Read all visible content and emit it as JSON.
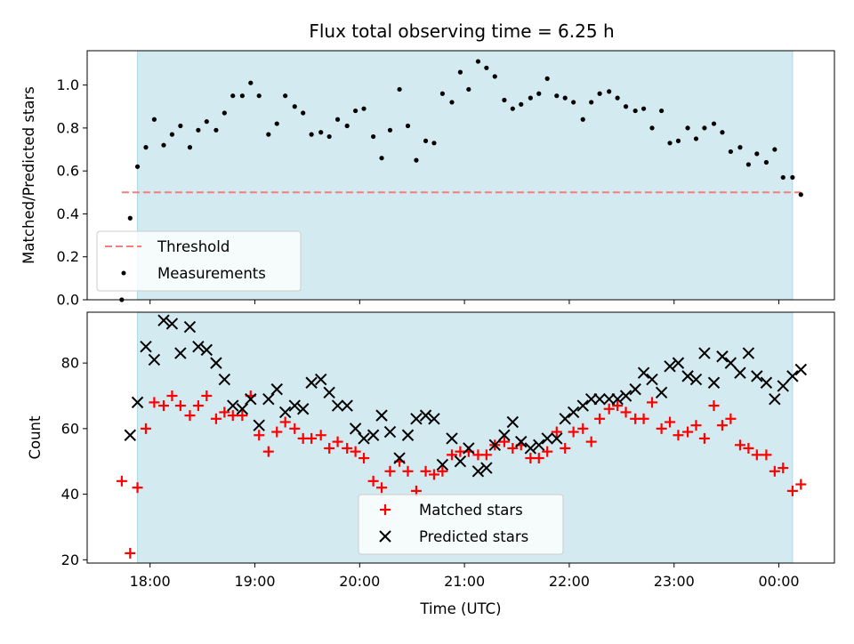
{
  "chart_data": [
    {
      "type": "scatter",
      "title": "Flux total observing time = 6.25 h",
      "xlabel": "",
      "ylabel": "Matched/Predicted stars",
      "xlim_hours": [
        17.4,
        24.53
      ],
      "ylim": [
        0.0,
        1.16
      ],
      "yticks": [
        0.0,
        0.2,
        0.4,
        0.6,
        0.8,
        1.0
      ],
      "ytick_labels": [
        "0.0",
        "0.2",
        "0.4",
        "0.6",
        "0.8",
        "1.0"
      ],
      "observing_window_hours": [
        17.88,
        24.13
      ],
      "observing_window_color": "#d3eaf0",
      "threshold": {
        "label": "Threshold",
        "value": 0.5,
        "x_range_hours": [
          17.73,
          24.21
        ],
        "color": "#f07f7f"
      },
      "legend_location": "lower left",
      "series": [
        {
          "name": "Measurements",
          "color": "#000000",
          "x": [
            17.73,
            17.81,
            17.88,
            17.96,
            18.04,
            18.13,
            18.21,
            18.29,
            18.38,
            18.46,
            18.54,
            18.63,
            18.71,
            18.79,
            18.88,
            18.96,
            19.04,
            19.13,
            19.21,
            19.29,
            19.38,
            19.46,
            19.54,
            19.63,
            19.71,
            19.79,
            19.88,
            19.96,
            20.04,
            20.13,
            20.21,
            20.29,
            20.38,
            20.46,
            20.54,
            20.63,
            20.71,
            20.79,
            20.88,
            20.96,
            21.04,
            21.13,
            21.21,
            21.29,
            21.38,
            21.46,
            21.54,
            21.63,
            21.71,
            21.79,
            21.88,
            21.96,
            22.04,
            22.13,
            22.21,
            22.29,
            22.38,
            22.46,
            22.54,
            22.63,
            22.71,
            22.79,
            22.88,
            22.96,
            23.04,
            23.13,
            23.21,
            23.29,
            23.38,
            23.46,
            23.54,
            23.63,
            23.71,
            23.79,
            23.88,
            23.96,
            24.04,
            24.13,
            24.21
          ],
          "y": [
            0.0,
            0.38,
            0.62,
            0.71,
            0.84,
            0.72,
            0.77,
            0.81,
            0.71,
            0.79,
            0.83,
            0.79,
            0.87,
            0.95,
            0.95,
            1.01,
            0.95,
            0.77,
            0.82,
            0.95,
            0.9,
            0.87,
            0.77,
            0.78,
            0.76,
            0.84,
            0.81,
            0.88,
            0.89,
            0.76,
            0.66,
            0.79,
            0.98,
            0.81,
            0.65,
            0.74,
            0.73,
            0.96,
            0.92,
            1.06,
            0.98,
            1.11,
            1.08,
            1.04,
            0.93,
            0.89,
            0.91,
            0.94,
            0.96,
            1.03,
            0.95,
            0.94,
            0.92,
            0.84,
            0.92,
            0.96,
            0.97,
            0.94,
            0.9,
            0.88,
            0.89,
            0.8,
            0.88,
            0.73,
            0.74,
            0.8,
            0.75,
            0.8,
            0.82,
            0.78,
            0.69,
            0.71,
            0.63,
            0.68,
            0.64,
            0.7,
            0.57,
            0.57,
            0.49
          ]
        }
      ]
    },
    {
      "type": "scatter",
      "title": "",
      "xlabel": "Time (UTC)",
      "ylabel": "Count",
      "xlim_hours": [
        17.4,
        24.53
      ],
      "ylim": [
        19.0,
        95.5
      ],
      "yticks": [
        20,
        40,
        60,
        80
      ],
      "ytick_labels": [
        "20",
        "40",
        "60",
        "80"
      ],
      "xticks_hours": [
        18,
        19,
        20,
        21,
        22,
        23,
        24
      ],
      "xtick_labels": [
        "18:00",
        "19:00",
        "20:00",
        "21:00",
        "22:00",
        "23:00",
        "00:00"
      ],
      "observing_window_hours": [
        17.88,
        24.13
      ],
      "observing_window_color": "#d3eaf0",
      "legend_location": "lower center",
      "series": [
        {
          "name": "Matched stars",
          "marker": "+",
          "color": "#ff0000",
          "x": [
            17.73,
            17.81,
            17.88,
            17.96,
            18.04,
            18.13,
            18.21,
            18.29,
            18.38,
            18.46,
            18.54,
            18.63,
            18.71,
            18.79,
            18.88,
            18.96,
            19.04,
            19.13,
            19.21,
            19.29,
            19.38,
            19.46,
            19.54,
            19.63,
            19.71,
            19.79,
            19.88,
            19.96,
            20.04,
            20.13,
            20.21,
            20.29,
            20.38,
            20.46,
            20.54,
            20.63,
            20.71,
            20.79,
            20.88,
            20.96,
            21.04,
            21.13,
            21.21,
            21.29,
            21.38,
            21.46,
            21.54,
            21.63,
            21.71,
            21.79,
            21.88,
            21.96,
            22.04,
            22.13,
            22.21,
            22.29,
            22.38,
            22.46,
            22.54,
            22.63,
            22.71,
            22.79,
            22.88,
            22.96,
            23.04,
            23.13,
            23.21,
            23.29,
            23.38,
            23.46,
            23.54,
            23.63,
            23.71,
            23.79,
            23.88,
            23.96,
            24.04,
            24.13,
            24.21
          ],
          "y": [
            44,
            22,
            42,
            60,
            68,
            67,
            70,
            67,
            64,
            67,
            70,
            63,
            65,
            64,
            64,
            70,
            58,
            53,
            59,
            62,
            60,
            57,
            57,
            58,
            54,
            56,
            54,
            53,
            51,
            44,
            42,
            47,
            50,
            47,
            41,
            47,
            46,
            47,
            52,
            53,
            53,
            52,
            52,
            55,
            56,
            54,
            55,
            51,
            51,
            53,
            59,
            54,
            59,
            60,
            56,
            63,
            66,
            67,
            65,
            63,
            63,
            68,
            60,
            62,
            58,
            59,
            61,
            57,
            67,
            61,
            63,
            55,
            54,
            52,
            52,
            47,
            48,
            41,
            43
          ]
        },
        {
          "name": "Predicted stars",
          "marker": "x",
          "color": "#000000",
          "x": [
            17.81,
            17.88,
            17.96,
            18.04,
            18.13,
            18.21,
            18.29,
            18.38,
            18.46,
            18.54,
            18.63,
            18.71,
            18.79,
            18.88,
            18.96,
            19.04,
            19.13,
            19.21,
            19.29,
            19.38,
            19.46,
            19.54,
            19.63,
            19.71,
            19.79,
            19.88,
            19.96,
            20.04,
            20.13,
            20.21,
            20.29,
            20.38,
            20.46,
            20.54,
            20.63,
            20.71,
            20.79,
            20.88,
            20.96,
            21.04,
            21.13,
            21.21,
            21.29,
            21.38,
            21.46,
            21.54,
            21.63,
            21.71,
            21.79,
            21.88,
            21.96,
            22.04,
            22.13,
            22.21,
            22.29,
            22.38,
            22.46,
            22.54,
            22.63,
            22.71,
            22.79,
            22.88,
            22.96,
            23.04,
            23.13,
            23.21,
            23.29,
            23.38,
            23.46,
            23.54,
            23.63,
            23.71,
            23.79,
            23.88,
            23.96,
            24.04,
            24.13,
            24.21
          ],
          "y": [
            58,
            68,
            85,
            81,
            93,
            92,
            83,
            91,
            85,
            84,
            80,
            75,
            67,
            66,
            69,
            61,
            69,
            72,
            65,
            67,
            66,
            74,
            75,
            71,
            67,
            67,
            60,
            57,
            58,
            64,
            59,
            51,
            58,
            63,
            64,
            63,
            49,
            57,
            50,
            54,
            47,
            48,
            55,
            58,
            62,
            56,
            54,
            55,
            57,
            57,
            63,
            65,
            67,
            69,
            69,
            69,
            69,
            70,
            72,
            77,
            75,
            71,
            79,
            80,
            76,
            75,
            83,
            74,
            82,
            80,
            77,
            83,
            76,
            74,
            69,
            73,
            76,
            78
          ]
        }
      ]
    }
  ]
}
